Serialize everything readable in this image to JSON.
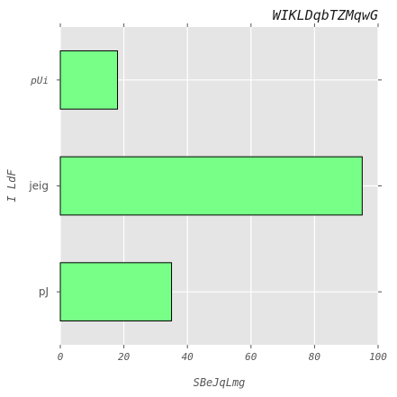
{
  "chart_data": {
    "type": "bar",
    "orientation": "horizontal",
    "title": "WIKLDqbTZMqwG",
    "xlabel": "SBeJqLmg",
    "ylabel": "I LdF",
    "categories": [
      "pUi",
      "jeig",
      "pJ"
    ],
    "values": [
      18,
      95,
      35
    ],
    "xlim": [
      0,
      100
    ],
    "xticks": [
      "0",
      "20",
      "40",
      "60",
      "80",
      "100"
    ],
    "grid": true,
    "colors": {
      "bar_fill": "#77ff88",
      "bar_edge": "#000000",
      "plot_background": "#e5e5e5",
      "grid": "#ffffff"
    }
  }
}
